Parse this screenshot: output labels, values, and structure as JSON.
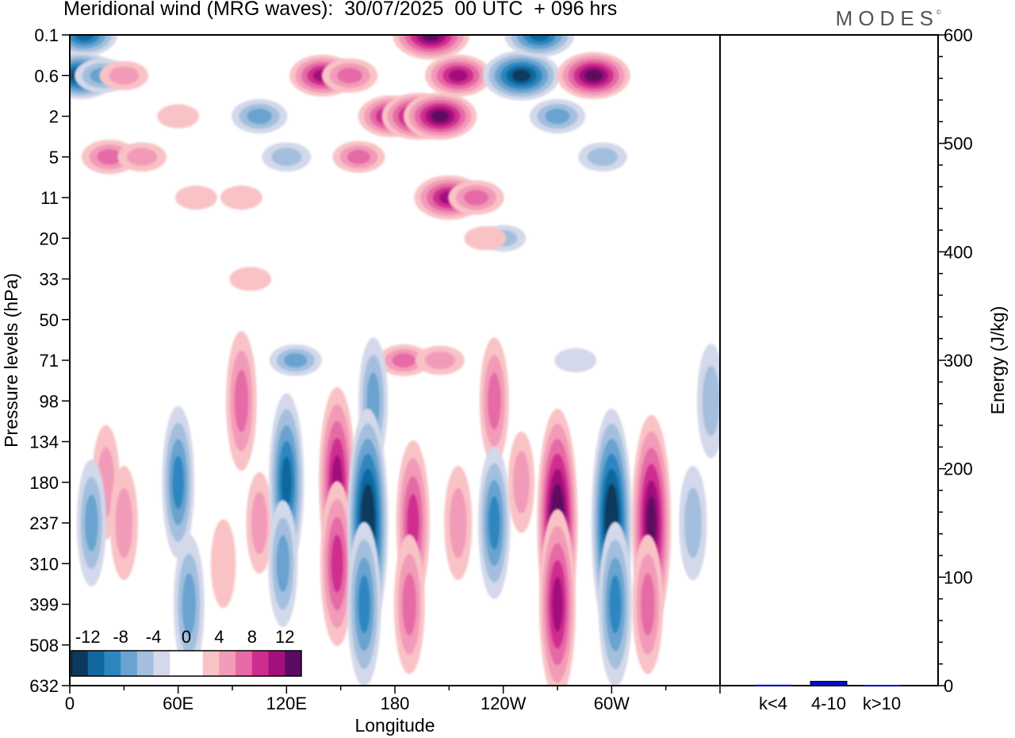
{
  "header": {
    "title": "Meridional wind (MRG waves):  30/07/2025  00 UTC  + 096 hrs",
    "brand": "MODES",
    "brand_mark": "©"
  },
  "chart_data": [
    {
      "type": "heatmap",
      "name": "Meridional wind contour plot",
      "xlabel": "Longitude",
      "ylabel": "Pressure levels (hPa)",
      "x_ticks": [
        "0",
        "60E",
        "120E",
        "180",
        "120W",
        "60W"
      ],
      "x_range_deg": [
        0,
        360
      ],
      "y_ticks": [
        "0.1",
        "0.6",
        "2",
        "5",
        "11",
        "20",
        "33",
        "50",
        "71",
        "98",
        "134",
        "180",
        "237",
        "310",
        "399",
        "508",
        "632"
      ],
      "colorbar": {
        "labels": [
          "-12",
          "-8",
          "-4",
          "0",
          "4",
          "8",
          "12"
        ],
        "levels": [
          -14,
          -12,
          -10,
          -8,
          -6,
          -4,
          -2,
          0,
          2,
          4,
          6,
          8,
          10,
          12,
          14
        ],
        "colors": [
          "#0c3a5c",
          "#11679e",
          "#2e86c1",
          "#6aa3cf",
          "#a3bfdd",
          "#d3d8ea",
          "#ffffff",
          "#ffffff",
          "#f9c3c6",
          "#f29bb8",
          "#e56aa5",
          "#cf2d8e",
          "#a1117b",
          "#5c0a61"
        ]
      },
      "cells": [
        {
          "lon": 8,
          "p": "0.1",
          "v": -9
        },
        {
          "lon": 6,
          "p": "0.6",
          "v": -11
        },
        {
          "lon": 18,
          "p": "0.6",
          "v": -6
        },
        {
          "lon": 30,
          "p": "0.6",
          "v": 4
        },
        {
          "lon": 22,
          "p": "5",
          "v": 6
        },
        {
          "lon": 40,
          "p": "5",
          "v": 4
        },
        {
          "lon": 60,
          "p": "2",
          "v": 2
        },
        {
          "lon": 105,
          "p": "2",
          "v": -6
        },
        {
          "lon": 120,
          "p": "5",
          "v": -4
        },
        {
          "lon": 140,
          "p": "0.6",
          "v": 9
        },
        {
          "lon": 155,
          "p": "0.6",
          "v": 6
        },
        {
          "lon": 160,
          "p": "5",
          "v": 5
        },
        {
          "lon": 178,
          "p": "2",
          "v": 9
        },
        {
          "lon": 193,
          "p": "2",
          "v": 11
        },
        {
          "lon": 200,
          "p": "0.1",
          "v": 12
        },
        {
          "lon": 205,
          "p": "2",
          "v": 11
        },
        {
          "lon": 215,
          "p": "0.6",
          "v": 9
        },
        {
          "lon": 210,
          "p": "11",
          "v": 10
        },
        {
          "lon": 225,
          "p": "11",
          "v": 6
        },
        {
          "lon": 250,
          "p": "0.6",
          "v": -12
        },
        {
          "lon": 260,
          "p": "0.1",
          "v": -10
        },
        {
          "lon": 270,
          "p": "2",
          "v": -6
        },
        {
          "lon": 290,
          "p": "0.6",
          "v": 11
        },
        {
          "lon": 295,
          "p": "5",
          "v": -4
        },
        {
          "lon": 70,
          "p": "11",
          "v": 2
        },
        {
          "lon": 95,
          "p": "11",
          "v": 2
        },
        {
          "lon": 240,
          "p": "20",
          "v": -3
        },
        {
          "lon": 230,
          "p": "20",
          "v": 2
        },
        {
          "lon": 100,
          "p": "33",
          "v": 2
        },
        {
          "lon": 95,
          "p": "98",
          "v": 6
        },
        {
          "lon": 125,
          "p": "71",
          "v": -5
        },
        {
          "lon": 185,
          "p": "71",
          "v": 5
        },
        {
          "lon": 205,
          "p": "71",
          "v": 4
        },
        {
          "lon": 235,
          "p": "98",
          "v": 5
        },
        {
          "lon": 280,
          "p": "71",
          "v": -2
        },
        {
          "lon": 168,
          "p": "98",
          "v": -5
        },
        {
          "lon": 20,
          "p": "180",
          "v": 4
        },
        {
          "lon": 30,
          "p": "237",
          "v": 4
        },
        {
          "lon": 12,
          "p": "237",
          "v": -5
        },
        {
          "lon": 60,
          "p": "180",
          "v": -7
        },
        {
          "lon": 66,
          "p": "399",
          "v": -6
        },
        {
          "lon": 85,
          "p": "310",
          "v": 2
        },
        {
          "lon": 105,
          "p": "237",
          "v": 3
        },
        {
          "lon": 120,
          "p": "180",
          "v": -9
        },
        {
          "lon": 118,
          "p": "310",
          "v": -5
        },
        {
          "lon": 148,
          "p": "180",
          "v": 10
        },
        {
          "lon": 148,
          "p": "310",
          "v": 8
        },
        {
          "lon": 165,
          "p": "237",
          "v": -13
        },
        {
          "lon": 163,
          "p": "399",
          "v": -8
        },
        {
          "lon": 190,
          "p": "237",
          "v": 8
        },
        {
          "lon": 188,
          "p": "399",
          "v": 6
        },
        {
          "lon": 215,
          "p": "237",
          "v": 4
        },
        {
          "lon": 235,
          "p": "237",
          "v": -7
        },
        {
          "lon": 250,
          "p": "180",
          "v": 3
        },
        {
          "lon": 270,
          "p": "237",
          "v": 13
        },
        {
          "lon": 270,
          "p": "399",
          "v": 10
        },
        {
          "lon": 300,
          "p": "237",
          "v": -13
        },
        {
          "lon": 302,
          "p": "399",
          "v": -8
        },
        {
          "lon": 322,
          "p": "237",
          "v": 12
        },
        {
          "lon": 320,
          "p": "399",
          "v": 6
        },
        {
          "lon": 345,
          "p": "237",
          "v": -4
        },
        {
          "lon": 355,
          "p": "98",
          "v": -4
        }
      ]
    },
    {
      "type": "bar",
      "name": "Energy by wavenumber",
      "categories": [
        "k<4",
        "4-10",
        "k>10"
      ],
      "values": [
        0.5,
        4,
        0.3
      ],
      "ylabel": "Energy (J/kg)",
      "y_ticks": [
        "0",
        "100",
        "200",
        "300",
        "400",
        "500",
        "600"
      ],
      "ylim": [
        0,
        600
      ],
      "bar_color": "#0b0bd0"
    }
  ]
}
